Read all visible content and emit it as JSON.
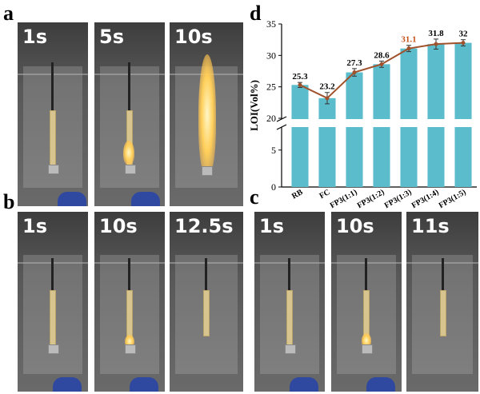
{
  "panels": {
    "a": {
      "letter": "a",
      "frames": [
        "1s",
        "5s",
        "10s"
      ]
    },
    "b": {
      "letter": "b",
      "frames": [
        "1s",
        "10s",
        "12.5s"
      ]
    },
    "c": {
      "letter": "c",
      "frames": [
        "1s",
        "10s",
        "11s"
      ]
    },
    "d": {
      "letter": "d"
    }
  },
  "colors": {
    "bar": "#5bbccc",
    "line": "#a0522d",
    "marker": "#a0522d",
    "highlight_label": "#c8541e"
  },
  "chart_data": {
    "type": "bar",
    "categories": [
      "RB",
      "FC",
      "FP3(1:1)",
      "FP3(1:2)",
      "FP3(1:3)",
      "FP3(1:4)",
      "FP3(1:5)"
    ],
    "values": [
      25.3,
      23.2,
      27.3,
      28.6,
      31.1,
      31.8,
      32
    ],
    "errors": [
      0.4,
      0.9,
      0.6,
      0.5,
      0.5,
      0.8,
      0.5
    ],
    "value_labels": [
      "25.3",
      "23.2",
      "27.3",
      "28.6",
      "31.1",
      "31.8",
      "32"
    ],
    "highlight_index": 4,
    "overlay": "line through bar tops with markers",
    "ylabel": "LOI(Vol%)",
    "xlabel": "",
    "axis_break": [
      8,
      20
    ],
    "ylim": [
      0,
      35
    ],
    "yticks_lower": [
      0,
      5
    ],
    "yticks_upper": [
      20,
      25,
      30,
      35
    ]
  }
}
